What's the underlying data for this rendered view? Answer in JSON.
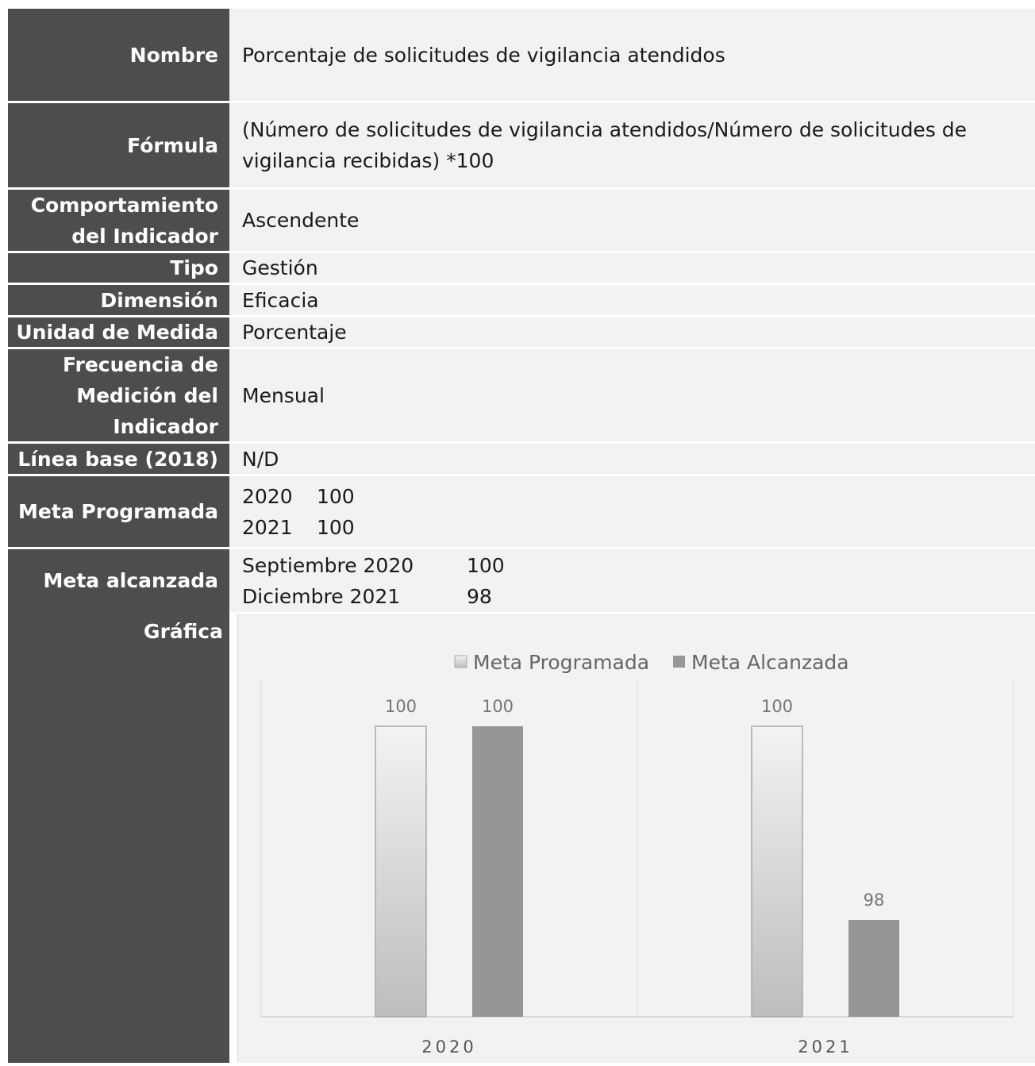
{
  "rows": {
    "nombre": {
      "label": "Nombre",
      "value": "Porcentaje de solicitudes de vigilancia atendidos"
    },
    "formula": {
      "label": "Fórmula",
      "value": "(Número de solicitudes de vigilancia atendidos/Número de solicitudes de vigilancia recibidas) *100"
    },
    "comportamiento": {
      "label": "Comportamiento del Indicador",
      "value": "Ascendente"
    },
    "tipo": {
      "label": "Tipo",
      "value": "Gestión"
    },
    "dimension": {
      "label": "Dimensión",
      "value": "Eficacia"
    },
    "unidad": {
      "label": "Unidad de Medida",
      "value": "Porcentaje"
    },
    "frecuencia": {
      "label": "Frecuencia de Medición del Indicador",
      "value": "Mensual"
    },
    "linea_base": {
      "label": "Línea base (2018)",
      "value": "N/D"
    },
    "meta_programada": {
      "label": "Meta Programada",
      "items": [
        {
          "year": "2020",
          "value": "100"
        },
        {
          "year": "2021",
          "value": "100"
        }
      ]
    },
    "meta_alcanzada": {
      "label": "Meta alcanzada",
      "items": [
        {
          "period": "Septiembre 2020",
          "value": "100"
        },
        {
          "period": "Diciembre 2021",
          "value": "98"
        }
      ]
    },
    "grafica": {
      "label": "Gráfica"
    }
  },
  "chart_data": {
    "type": "bar",
    "categories": [
      "2020",
      "2021"
    ],
    "series": [
      {
        "name": "Meta Programada",
        "values": [
          100,
          100
        ]
      },
      {
        "name": "Meta Alcanzada",
        "values": [
          100,
          98
        ]
      }
    ],
    "data_labels": [
      [
        "100",
        "100"
      ],
      [
        "100",
        "98"
      ]
    ],
    "ylim": [
      97,
      100
    ],
    "gridlines": false,
    "legend": "top-center",
    "colors": {
      "meta_programada": "#d9d9d9",
      "meta_alcanzada": "#969696"
    }
  }
}
